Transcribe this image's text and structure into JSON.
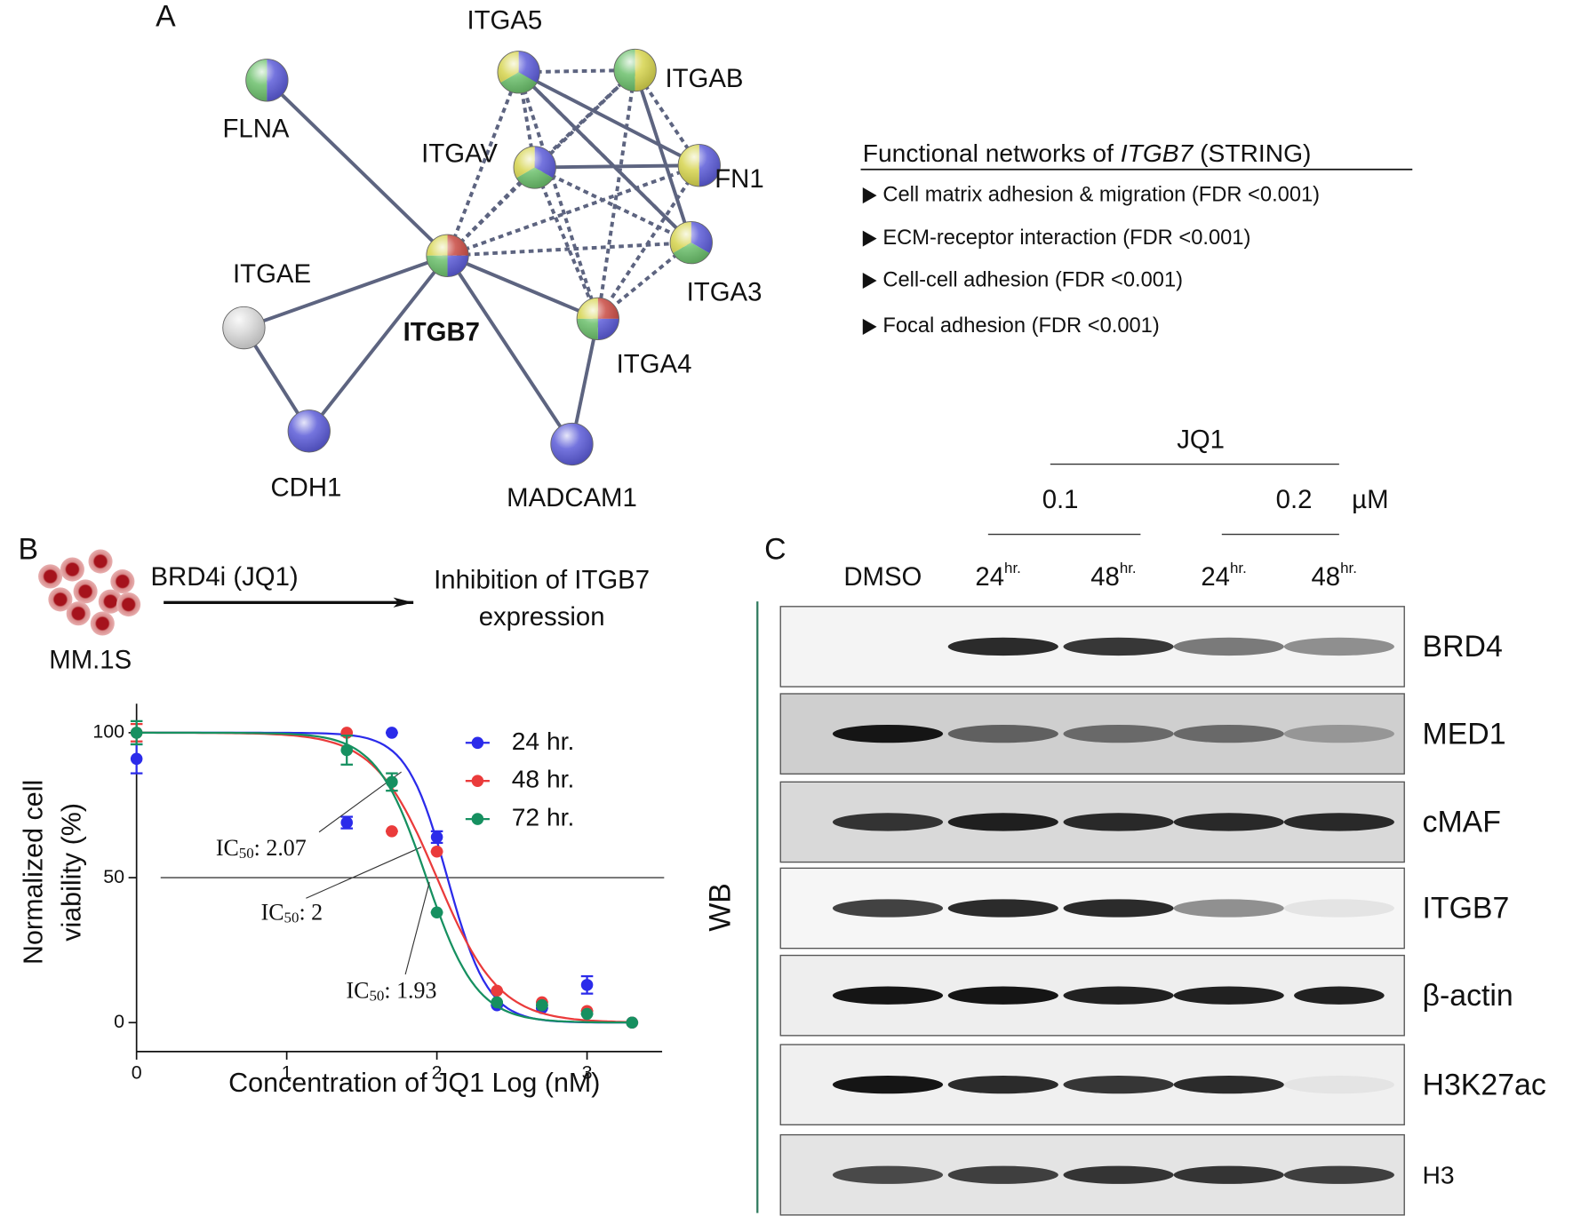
{
  "panel_labels": [
    "A",
    "B",
    "C"
  ],
  "network": {
    "nodes": [
      {
        "label": "ITGA5",
        "colors": [
          "#d6d44e",
          "#5c5cd8",
          "#6cc06c"
        ]
      },
      {
        "label": "ITGAB",
        "colors": [
          "#6cc06c",
          "#d6d44e"
        ]
      },
      {
        "label": "FLNA",
        "colors": [
          "#6cc06c",
          "#5c5cd8"
        ]
      },
      {
        "label": "ITGAV",
        "colors": [
          "#d6d44e",
          "#5c5cd8",
          "#6cc06c"
        ]
      },
      {
        "label": "FN1",
        "colors": [
          "#d6d44e",
          "#5c5cd8"
        ]
      },
      {
        "label": "ITGB7",
        "colors": [
          "#d6d44e",
          "#c84a42",
          "#5c5cd8",
          "#6cc06c"
        ]
      },
      {
        "label": "ITGA3",
        "colors": [
          "#d6d44e",
          "#5c5cd8",
          "#6cc06c"
        ]
      },
      {
        "label": "ITGAE",
        "colors": [
          "#d8d8d8"
        ]
      },
      {
        "label": "ITGA4",
        "colors": [
          "#d6d44e",
          "#c84a42",
          "#5c5cd8",
          "#6cc06c"
        ]
      },
      {
        "label": "CDH1",
        "colors": [
          "#5c5cd8"
        ]
      },
      {
        "label": "MADCAM1",
        "colors": [
          "#5c5cd8"
        ]
      }
    ],
    "legend": {
      "title_parts": [
        "Functional networks of ",
        "ITGB7",
        " (STRING)"
      ],
      "items": [
        {
          "text": "Cell matrix adhesion & migration (FDR <0.001)",
          "color": "#d08480"
        },
        {
          "text": "ECM-receptor interaction (FDR <0.001)",
          "color": "#c4bc44"
        },
        {
          "text": "Cell-cell adhesion (FDR <0.001)",
          "color": "#6262d2"
        },
        {
          "text": "Focal adhesion (FDR <0.001)",
          "color": "#5cae5c"
        }
      ]
    }
  },
  "schematic": {
    "cell_line": "MM.1S",
    "treatment": "BRD4i (JQ1)",
    "outcome_lines": [
      "Inhibition of ITGB7",
      "expression"
    ]
  },
  "chart_data": {
    "type": "scatter",
    "x_label": "Concentration of JQ1 Log (nM)",
    "y_label_lines": [
      "Normalized cell",
      "viability (%)"
    ],
    "x": [
      0,
      1.4,
      1.7,
      2,
      2.4,
      2.7,
      3,
      3.3
    ],
    "series": [
      {
        "name": "24 hr.",
        "color": "#2b2bea",
        "values": [
          91,
          69,
          100,
          64,
          6,
          5,
          13,
          0
        ],
        "errors": [
          5,
          2,
          0,
          2,
          0,
          0,
          3,
          0
        ],
        "ic50": 2.07,
        "ic50_label": [
          "IC",
          "50",
          ": 2.07"
        ]
      },
      {
        "name": "48 hr.",
        "color": "#ea3b3b",
        "values": [
          100,
          100,
          66,
          59,
          11,
          7,
          4,
          0
        ],
        "errors": [
          3,
          0,
          0,
          0,
          0,
          0,
          0,
          0
        ],
        "ic50": 2,
        "ic50_label": [
          "IC",
          "50",
          ": 2"
        ]
      },
      {
        "name": "72 hr.",
        "color": "#169060",
        "values": [
          100,
          94,
          83,
          38,
          7,
          6,
          3,
          0
        ],
        "errors": [
          4,
          5,
          3,
          0,
          0,
          0,
          0,
          0
        ],
        "ic50": 1.93,
        "ic50_label": [
          "IC",
          "50",
          ": 1.93"
        ]
      }
    ],
    "reference_line": 50,
    "xlim": [
      0,
      3.5
    ],
    "xticks": [
      0,
      1,
      2,
      3
    ],
    "ylim": [
      -10,
      110
    ],
    "yticks": [
      0,
      50,
      100
    ]
  },
  "western_blot": {
    "treatment": "JQ1",
    "unit": "µM",
    "doses": [
      "0.1",
      "0.2"
    ],
    "method": "WB",
    "lanes": [
      {
        "label": "DMSO"
      },
      {
        "label": "24",
        "superscript": "hr."
      },
      {
        "label": "48",
        "superscript": "hr."
      },
      {
        "label": "24",
        "superscript": "hr."
      },
      {
        "label": "48",
        "superscript": "hr."
      }
    ],
    "proteins": [
      "BRD4",
      "MED1",
      "cMAF",
      "ITGB7",
      "β-actin",
      "H3K27ac",
      "H3"
    ]
  }
}
